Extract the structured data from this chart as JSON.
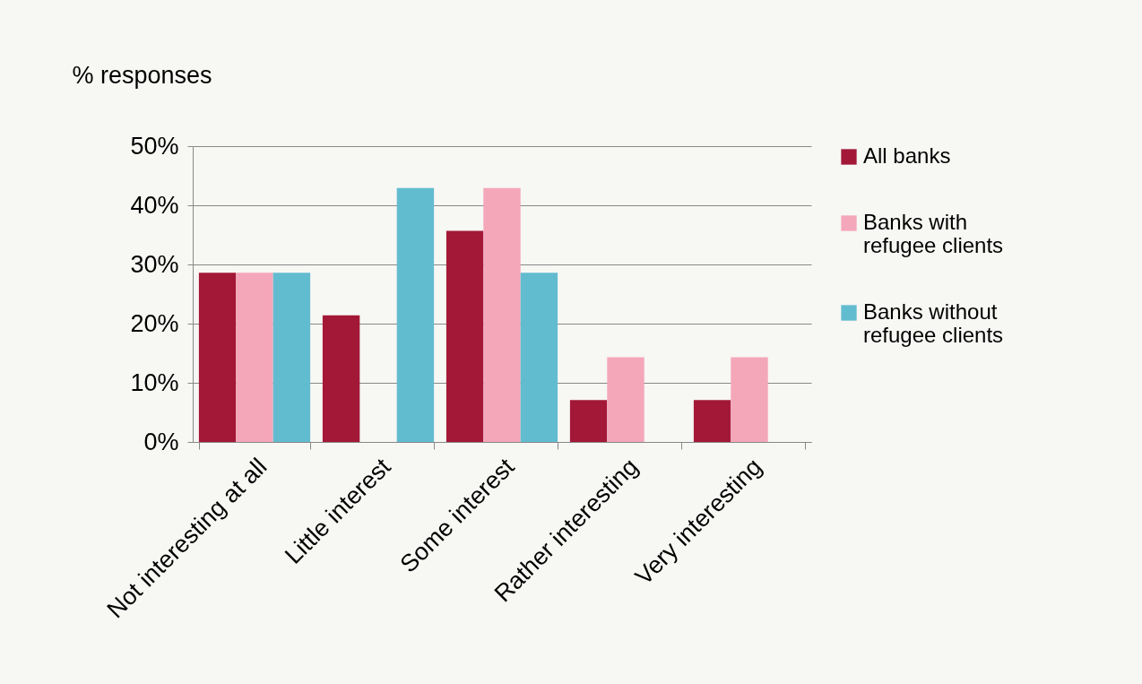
{
  "chart_data": {
    "type": "bar",
    "ylabel": "% responses",
    "categories": [
      "Not interesting at all",
      "Little interest",
      "Some interest",
      "Rather interesting",
      "Very interesting"
    ],
    "series": [
      {
        "name": "All banks",
        "color": "#a31837",
        "values": [
          28.6,
          21.4,
          35.7,
          7.1,
          7.1
        ]
      },
      {
        "name": "Banks with refugee clients",
        "color": "#f4a7b9",
        "values": [
          28.6,
          0,
          42.9,
          14.3,
          14.3
        ]
      },
      {
        "name": "Banks without refugee clients",
        "color": "#62bcd0",
        "values": [
          28.6,
          42.9,
          28.6,
          0,
          0
        ]
      }
    ],
    "ylim": [
      0,
      50
    ],
    "yticks": [
      {
        "value": 0,
        "label": "0%"
      },
      {
        "value": 10,
        "label": "10%"
      },
      {
        "value": 20,
        "label": "20%"
      },
      {
        "value": 30,
        "label": "30%"
      },
      {
        "value": 40,
        "label": "40%"
      },
      {
        "value": 50,
        "label": "50%"
      }
    ],
    "grid": "y",
    "legend": "right"
  }
}
